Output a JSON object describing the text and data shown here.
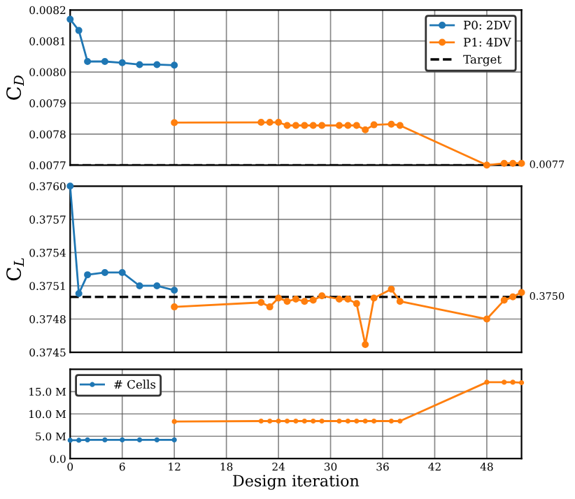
{
  "chart_data": [
    {
      "type": "line",
      "ylabel": "C$_{D}$",
      "xlim": [
        0,
        52
      ],
      "xticks": [
        0,
        6,
        12,
        18,
        24,
        30,
        36,
        42,
        48
      ],
      "ylim": [
        0.0077,
        0.0082
      ],
      "yticks": [
        {
          "value": 0.0077,
          "label": "0.0077"
        },
        {
          "value": 0.0078,
          "label": "0.0078"
        },
        {
          "value": 0.0079,
          "label": "0.0079"
        },
        {
          "value": 0.008,
          "label": "0.0080"
        },
        {
          "value": 0.0081,
          "label": "0.0081"
        },
        {
          "value": 0.0082,
          "label": "0.0082"
        }
      ],
      "tick_labels": "y",
      "grid": true,
      "legend": "top right",
      "marker": "circle",
      "series": [
        {
          "name": "P0: 2DV",
          "color": "#1f77b4",
          "x": [
            0,
            1,
            2,
            4,
            6,
            8,
            10,
            12
          ],
          "values": [
            0.00817,
            0.008134,
            0.008034,
            0.008034,
            0.00803,
            0.008024,
            0.008024,
            0.008022
          ]
        },
        {
          "name": "P1: 4DV",
          "color": "#ff7f0e",
          "x": [
            12,
            22,
            23,
            24,
            25,
            26,
            27,
            28,
            29,
            31,
            32,
            33,
            34,
            35,
            37,
            38,
            48,
            50,
            51,
            52
          ],
          "values": [
            0.007837,
            0.007838,
            0.007838,
            0.007838,
            0.007828,
            0.007828,
            0.007828,
            0.007828,
            0.007828,
            0.007828,
            0.007828,
            0.007828,
            0.007814,
            0.00783,
            0.007832,
            0.007828,
            0.0077,
            0.007706,
            0.007706,
            0.007706
          ]
        }
      ],
      "ref_lines": [
        {
          "axis": "y",
          "value": 0.0077,
          "label": "Target",
          "color": "#000000",
          "line_style": "dashed"
        }
      ],
      "annotations": [
        {
          "text": "0.0077",
          "x": 52,
          "y": 0.0077
        }
      ]
    },
    {
      "type": "line",
      "ylabel": "C$_{L}$",
      "xlim": [
        0,
        52
      ],
      "xticks": [
        0,
        6,
        12,
        18,
        24,
        30,
        36,
        42,
        48
      ],
      "ylim": [
        0.3745,
        0.376
      ],
      "yticks": [
        {
          "value": 0.3745,
          "label": "0.3745"
        },
        {
          "value": 0.3748,
          "label": "0.3748"
        },
        {
          "value": 0.3751,
          "label": "0.3751"
        },
        {
          "value": 0.3754,
          "label": "0.3754"
        },
        {
          "value": 0.3757,
          "label": "0.3757"
        },
        {
          "value": 0.376,
          "label": "0.3760"
        }
      ],
      "tick_labels": "y",
      "grid": true,
      "marker": "circle",
      "series": [
        {
          "color": "#1f77b4",
          "x": [
            0,
            1,
            2,
            4,
            6,
            8,
            10,
            12
          ],
          "values": [
            0.376,
            0.37503,
            0.3752,
            0.37522,
            0.37522,
            0.3751,
            0.3751,
            0.37506
          ]
        },
        {
          "color": "#ff7f0e",
          "x": [
            12,
            22,
            23,
            24,
            25,
            26,
            27,
            28,
            29,
            31,
            32,
            33,
            34,
            35,
            37,
            38,
            48,
            50,
            51,
            52
          ],
          "values": [
            0.37491,
            0.37495,
            0.37491,
            0.37499,
            0.37496,
            0.37498,
            0.37496,
            0.37497,
            0.37501,
            0.37498,
            0.37498,
            0.37494,
            0.37457,
            0.37499,
            0.37507,
            0.37496,
            0.3748,
            0.37497,
            0.375,
            0.37504
          ]
        }
      ],
      "ref_lines": [
        {
          "axis": "y",
          "value": 0.375,
          "color": "#000000",
          "line_style": "dashed"
        }
      ],
      "annotations": [
        {
          "text": "0.3750",
          "x": 52,
          "y": 0.375
        }
      ]
    },
    {
      "type": "line",
      "xlabel": "Design iteration",
      "xlim": [
        0,
        52
      ],
      "xticks": [
        0,
        6,
        12,
        18,
        24,
        30,
        36,
        42,
        48
      ],
      "ylim": [
        0,
        20
      ],
      "yticks": [
        {
          "value": 0,
          "label": "0.0"
        },
        {
          "value": 5,
          "label": "5.0 M"
        },
        {
          "value": 10,
          "label": "10.0 M"
        },
        {
          "value": 15,
          "label": "15.0 M"
        }
      ],
      "grid": true,
      "legend": "top left",
      "marker": "circle",
      "series": [
        {
          "name": "# Cells",
          "color": "#1f77b4",
          "x": [
            0,
            1,
            2,
            4,
            6,
            8,
            10,
            12
          ],
          "values": [
            4.1,
            4.1,
            4.2,
            4.2,
            4.2,
            4.2,
            4.2,
            4.2
          ]
        },
        {
          "color": "#ff7f0e",
          "x": [
            12,
            22,
            23,
            24,
            25,
            26,
            27,
            28,
            29,
            31,
            32,
            33,
            34,
            35,
            37,
            38,
            48,
            50,
            51,
            52
          ],
          "values": [
            8.3,
            8.4,
            8.4,
            8.4,
            8.4,
            8.4,
            8.4,
            8.4,
            8.4,
            8.4,
            8.4,
            8.4,
            8.4,
            8.4,
            8.4,
            8.4,
            17.1,
            17.1,
            17.1,
            17.0
          ]
        }
      ]
    }
  ]
}
